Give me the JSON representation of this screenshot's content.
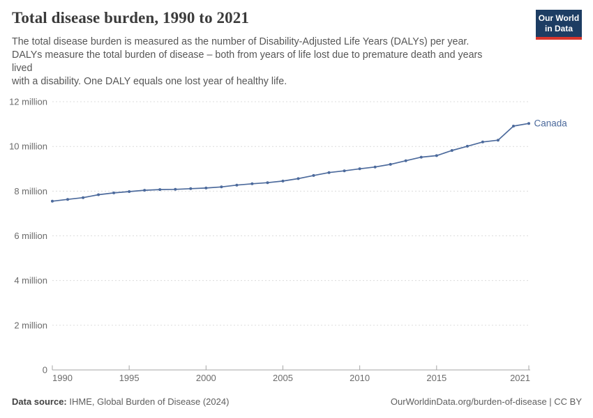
{
  "header": {
    "title": "Total disease burden, 1990 to 2021",
    "subtitle": "The total disease burden is measured as the number of Disability-Adjusted Life Years (DALYs) per year.\nDALYs measure the total burden of disease – both from years of life lost due to premature death and years\nlived\nwith a disability. One DALY equals one lost year of healthy life."
  },
  "logo": {
    "line1": "Our World",
    "line2": "in Data",
    "bg_color": "#1d3d63",
    "accent_color": "#d8362c"
  },
  "chart_data": {
    "type": "line",
    "title": "Total disease burden, 1990 to 2021",
    "xlabel": "",
    "ylabel": "Disability-Adjusted Life Years (DALYs) per year",
    "unit": "million",
    "x": [
      1990,
      1991,
      1992,
      1993,
      1994,
      1995,
      1996,
      1997,
      1998,
      1999,
      2000,
      2001,
      2002,
      2003,
      2004,
      2005,
      2006,
      2007,
      2008,
      2009,
      2010,
      2011,
      2012,
      2013,
      2014,
      2015,
      2016,
      2017,
      2018,
      2019,
      2020,
      2021
    ],
    "series": [
      {
        "name": "Canada",
        "color": "#4c6a9c",
        "values_millions": [
          7.55,
          7.63,
          7.71,
          7.84,
          7.92,
          7.98,
          8.04,
          8.07,
          8.08,
          8.11,
          8.14,
          8.19,
          8.27,
          8.33,
          8.38,
          8.45,
          8.56,
          8.7,
          8.83,
          8.91,
          9.0,
          9.08,
          9.2,
          9.36,
          9.52,
          9.59,
          9.82,
          10.01,
          10.2,
          10.28,
          10.91,
          11.03
        ]
      }
    ],
    "ylim_millions": [
      0,
      12.4
    ],
    "yticks": [
      {
        "value": 0,
        "label": "0"
      },
      {
        "value": 2,
        "label": "2 million"
      },
      {
        "value": 4,
        "label": "4 million"
      },
      {
        "value": 6,
        "label": "6 million"
      },
      {
        "value": 8,
        "label": "8 million"
      },
      {
        "value": 10,
        "label": "10 million"
      },
      {
        "value": 12,
        "label": "12 million"
      }
    ],
    "xticks": [
      1990,
      1995,
      2000,
      2005,
      2010,
      2015,
      2021
    ],
    "grid": "horizontal-dashed",
    "legend": "end-of-line-label",
    "colors": {
      "gridline": "#dcdcdc",
      "axis": "#a5a5a5",
      "tick_text": "#6b6b6b"
    }
  },
  "footer": {
    "datasource_label": "Data source:",
    "datasource_value": " IHME, Global Burden of Disease (2024)",
    "credit": "OurWorldinData.org/burden-of-disease | CC BY"
  }
}
